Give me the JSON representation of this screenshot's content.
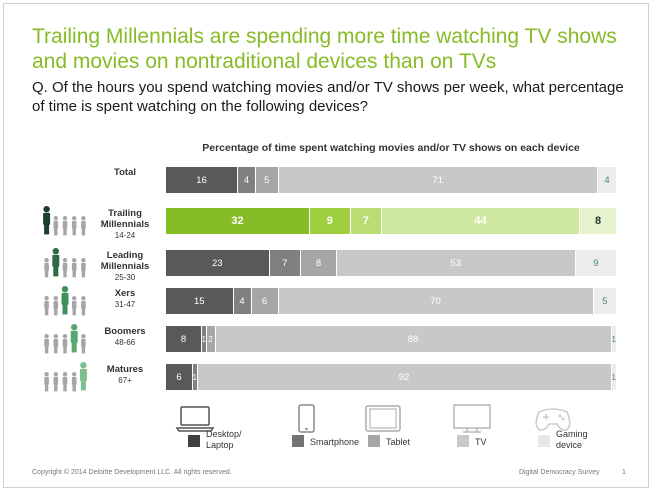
{
  "title": "Trailing Millennials are spending more time watching TV shows and movies on nontraditional devices than on TVs",
  "question": "Q. Of the hours you spend watching movies and/or TV shows per week, what percentage of time is spent watching on the following devices?",
  "chart_data": {
    "type": "bar",
    "orientation": "horizontal",
    "stacked": true,
    "title": "Percentage of time spent watching movies and/or TV shows on each device",
    "categories": [
      "Total",
      "Trailing Millennials",
      "Leading Millennials",
      "Xers",
      "Boomers",
      "Matures"
    ],
    "age_ranges": [
      "",
      "14-24",
      "25-30",
      "31-47",
      "48-66",
      "67+"
    ],
    "highlighted_category": "Trailing Millennials",
    "series": [
      {
        "name": "Desktop/ Laptop",
        "values": [
          16,
          32,
          23,
          15,
          8,
          6
        ]
      },
      {
        "name": "Smartphone",
        "values": [
          4,
          9,
          7,
          4,
          1,
          1
        ]
      },
      {
        "name": "Tablet",
        "values": [
          5,
          7,
          8,
          6,
          2,
          0
        ]
      },
      {
        "name": "TV",
        "values": [
          71,
          44,
          53,
          70,
          88,
          92
        ]
      },
      {
        "name": "Gaming device",
        "values": [
          4,
          8,
          9,
          5,
          1,
          1
        ]
      }
    ],
    "colors": {
      "normal": [
        "#595959",
        "#808080",
        "#a6a6a6",
        "#c8c8c8",
        "#ececec"
      ],
      "highlight": [
        "#86bc25",
        "#9fcf3f",
        "#b9dd72",
        "#cfe8a1",
        "#e7f3cf"
      ],
      "gaming_label": "#4a8a6e"
    },
    "person_colors": {
      "highlight_green": "#1f6b3a",
      "grey": "#a6a6a6"
    }
  },
  "legend_icons": [
    "laptop-icon",
    "smartphone-icon",
    "tablet-icon",
    "tv-icon",
    "gamepad-icon"
  ],
  "footer": {
    "copyright": "Copyright © 2014 Deloitte Development LLC. All rights reserved.",
    "survey": "Digital Democracy Survey",
    "page": "1"
  }
}
